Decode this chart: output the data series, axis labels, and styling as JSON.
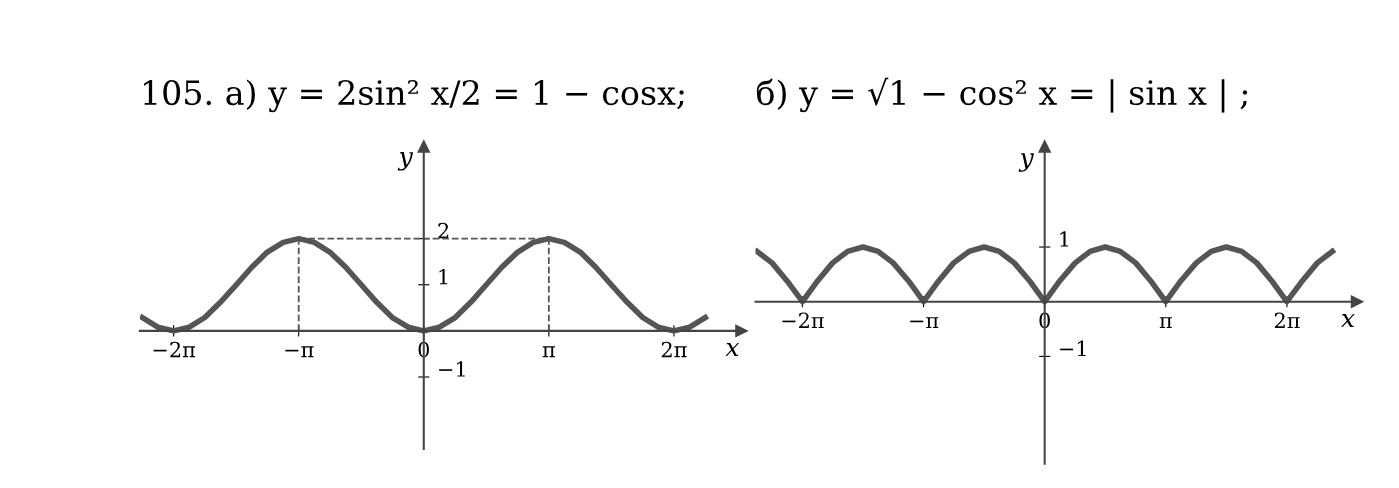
{
  "chart_data": [
    {
      "type": "line",
      "title": "105. а) y = 2sin² x/2 = 1 − cosx;",
      "xlabel": "x",
      "ylabel": "y",
      "x": [
        -7.07,
        -6.68,
        -6.28,
        -5.89,
        -5.5,
        -5.11,
        -4.71,
        -4.32,
        -3.93,
        -3.53,
        -3.14,
        -2.75,
        -2.36,
        -1.96,
        -1.57,
        -1.18,
        -0.79,
        -0.39,
        0,
        0.39,
        0.79,
        1.18,
        1.57,
        1.96,
        2.36,
        2.75,
        3.14,
        3.53,
        3.93,
        4.32,
        4.71,
        5.11,
        5.5,
        5.89,
        6.28,
        6.68,
        7.07
      ],
      "series": [
        {
          "color": "#555555",
          "values": [
            0.29,
            0.08,
            0,
            0.08,
            0.29,
            0.62,
            1,
            1.38,
            1.71,
            1.92,
            2,
            1.92,
            1.71,
            1.38,
            1,
            0.62,
            0.29,
            0.08,
            0,
            0.08,
            0.29,
            0.62,
            1,
            1.38,
            1.71,
            1.92,
            2,
            1.92,
            1.71,
            1.38,
            1,
            0.62,
            0.29,
            0.08,
            0,
            0.08,
            0.29
          ]
        }
      ],
      "xlim": [
        -7.13,
        7.98
      ],
      "ylim": [
        -2.56,
        4.0
      ],
      "xticks": [
        {
          "value": -6.283,
          "label": "−2π"
        },
        {
          "value": -3.1416,
          "label": "−π"
        },
        {
          "value": 0,
          "label": "0"
        },
        {
          "value": 3.1416,
          "label": "π"
        },
        {
          "value": 6.283,
          "label": "2π"
        }
      ],
      "yticks": [
        {
          "value": -1,
          "label": "−1"
        },
        1,
        2
      ],
      "ref_lines": [
        {
          "axis": "x",
          "value": -3.1416,
          "line_style": "dashed"
        },
        {
          "axis": "x",
          "value": 3.1416,
          "line_style": "dashed"
        },
        {
          "axis": "y",
          "value": 2,
          "line_style": "dashed"
        }
      ],
      "grid": false,
      "legend": false,
      "line_style": "solid",
      "marker": "none"
    },
    {
      "type": "line",
      "title": "б) y = √1 − cos² x = | sin x | ;",
      "xlabel": "x",
      "ylabel": "y",
      "x": [
        -7.46,
        -7.07,
        -6.68,
        -6.28,
        -5.89,
        -5.5,
        -5.11,
        -4.71,
        -4.32,
        -3.93,
        -3.53,
        -3.14,
        -2.75,
        -2.36,
        -1.96,
        -1.57,
        -1.18,
        -0.79,
        -0.39,
        0,
        0.39,
        0.79,
        1.18,
        1.57,
        1.96,
        2.36,
        2.75,
        3.14,
        3.53,
        3.93,
        4.32,
        4.71,
        5.11,
        5.5,
        5.89,
        6.28,
        6.68,
        7.07,
        7.46
      ],
      "series": [
        {
          "color": "#555555",
          "values": [
            0.92,
            0.71,
            0.38,
            0,
            0.38,
            0.71,
            0.92,
            1,
            0.92,
            0.71,
            0.38,
            0,
            0.38,
            0.71,
            0.92,
            1,
            0.92,
            0.71,
            0.38,
            0,
            0.38,
            0.71,
            0.92,
            1,
            0.92,
            0.71,
            0.38,
            0,
            0.38,
            0.71,
            0.92,
            1,
            0.92,
            0.71,
            0.38,
            0,
            0.38,
            0.71,
            0.92
          ]
        }
      ],
      "xlim": [
        -7.5,
        8.1
      ],
      "ylim": [
        -2.96,
        2.84
      ],
      "xticks": [
        {
          "value": -6.283,
          "label": "−2π"
        },
        {
          "value": -3.1416,
          "label": "−π"
        },
        {
          "value": 0,
          "label": "0"
        },
        {
          "value": 3.1416,
          "label": "π"
        },
        {
          "value": 6.283,
          "label": "2π"
        }
      ],
      "yticks": [
        {
          "value": -1,
          "label": "−1"
        },
        1
      ],
      "grid": false,
      "legend": false,
      "line_style": "solid",
      "marker": "none"
    }
  ]
}
